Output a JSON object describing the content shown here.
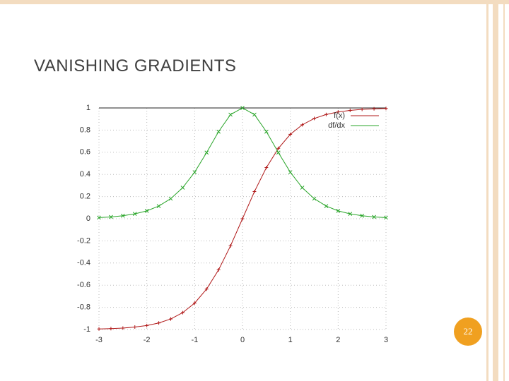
{
  "slide": {
    "title": "VANISHING GRADIENTS",
    "page_number": "22"
  },
  "chart_data": {
    "type": "line",
    "x": [
      -3,
      -2.75,
      -2.5,
      -2.25,
      -2,
      -1.75,
      -1.5,
      -1.25,
      -1,
      -0.75,
      -0.5,
      -0.25,
      0,
      0.25,
      0.5,
      0.75,
      1,
      1.25,
      1.5,
      1.75,
      2,
      2.25,
      2.5,
      2.75,
      3
    ],
    "series": [
      {
        "name": "f(x)",
        "color": "#b01818",
        "values": [
          -0.995,
          -0.992,
          -0.987,
          -0.978,
          -0.964,
          -0.941,
          -0.905,
          -0.848,
          -0.762,
          -0.635,
          -0.462,
          -0.245,
          0,
          0.245,
          0.462,
          0.635,
          0.762,
          0.848,
          0.905,
          0.941,
          0.964,
          0.978,
          0.987,
          0.992,
          0.995
        ]
      },
      {
        "name": "df/dx",
        "color": "#2aa52a",
        "values": [
          0.01,
          0.016,
          0.027,
          0.044,
          0.071,
          0.114,
          0.181,
          0.28,
          0.42,
          0.597,
          0.786,
          0.94,
          1,
          0.94,
          0.786,
          0.597,
          0.42,
          0.28,
          0.181,
          0.114,
          0.071,
          0.044,
          0.027,
          0.016,
          0.01
        ]
      }
    ],
    "xlim": [
      -3,
      3
    ],
    "xticks": [
      -3,
      -2,
      -1,
      0,
      1,
      2,
      3
    ],
    "ylim": [
      -1,
      1
    ],
    "yticks": [
      -1,
      -0.8,
      -0.6,
      -0.4,
      -0.2,
      0,
      0.2,
      0.4,
      0.6,
      0.8,
      1
    ],
    "grid": true,
    "legend": "upper right"
  }
}
